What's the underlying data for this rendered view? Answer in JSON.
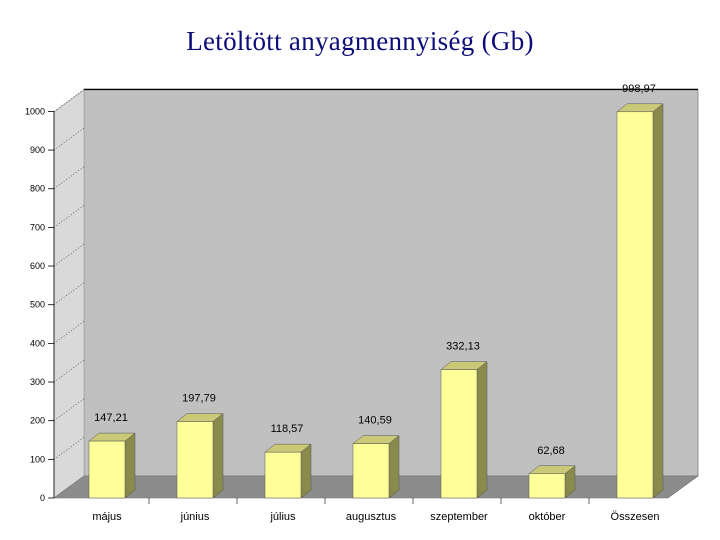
{
  "chart_data": {
    "type": "bar",
    "title": "Letöltött anyagmennyiség (Gb)",
    "categories": [
      "május",
      "június",
      "július",
      "augusztus",
      "szeptember",
      "október",
      "Összesen"
    ],
    "values": [
      147.21,
      197.79,
      118.57,
      140.59,
      332.13,
      62.68,
      998.97
    ],
    "value_labels": [
      "147,21",
      "197,79",
      "118,57",
      "140,59",
      "332,13",
      "62,68",
      "998,97"
    ],
    "y_ticks": [
      "0",
      "100",
      "200",
      "300",
      "400",
      "500",
      "600",
      "700",
      "800",
      "900",
      "1000"
    ],
    "ylim": [
      0,
      1000
    ],
    "grid": false,
    "xlabel": "",
    "ylabel": "",
    "colors": {
      "bar_front": "#ffff99",
      "bar_side": "#8a8a4d",
      "bar_top": "#c9c978",
      "back_wall": "#c0c0c0",
      "side_wall": "#d9d9d9",
      "floor": "#8c8c8c",
      "title": "#0d0d7a"
    }
  }
}
